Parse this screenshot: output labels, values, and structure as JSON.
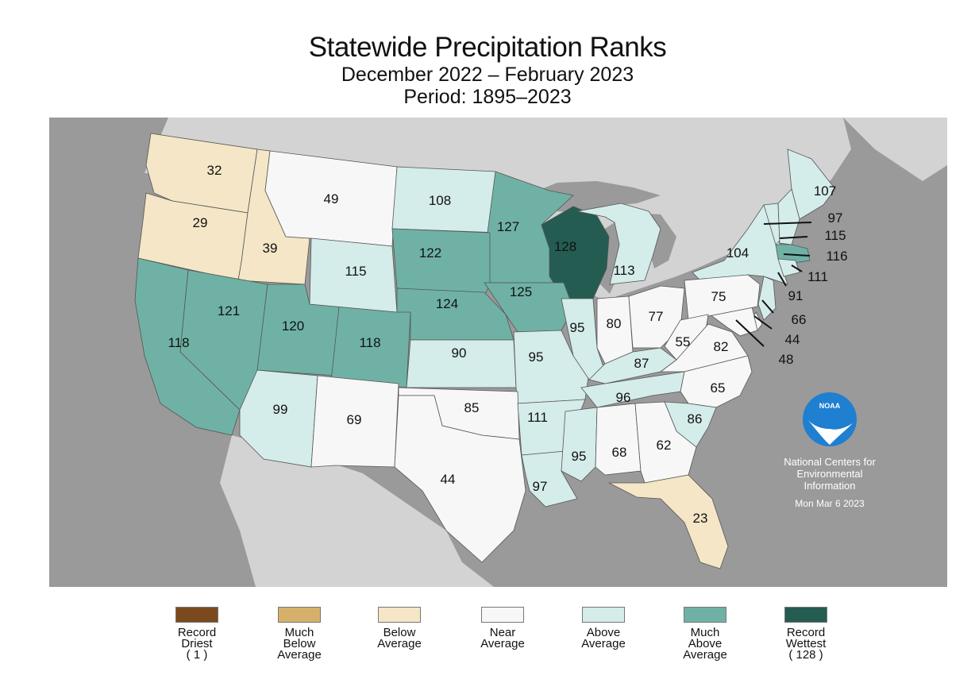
{
  "header": {
    "title": "Statewide Precipitation Ranks",
    "subtitle": "December 2022 – February 2023",
    "period": "Period: 1895–2023"
  },
  "colors": {
    "ocean": "#9a9a9a",
    "land_outside": "#d3d3d3",
    "lakes": "#9a9a9a",
    "state_border": "#555555",
    "record_driest": "#7a4a1e",
    "much_below": "#d6b06a",
    "below": "#f4e6c6",
    "near": "#f7f7f7",
    "above": "#d4ecea",
    "much_above": "#6fb2a5",
    "record_wettest": "#245c52"
  },
  "legend": [
    {
      "label": "Record\nDriest\n( 1 )",
      "color": "#7a4a1e"
    },
    {
      "label": "Much\nBelow\nAverage",
      "color": "#d6b06a"
    },
    {
      "label": "Below\nAverage",
      "color": "#f4e6c6"
    },
    {
      "label": "Near\nAverage",
      "color": "#f7f7f7"
    },
    {
      "label": "Above\nAverage",
      "color": "#d4ecea"
    },
    {
      "label": "Much\nAbove\nAverage",
      "color": "#6fb2a5"
    },
    {
      "label": "Record\nWettest\n( 128 )",
      "color": "#245c52"
    }
  ],
  "states": [
    {
      "code": "WA",
      "rank": "32",
      "cat": "below"
    },
    {
      "code": "OR",
      "rank": "29",
      "cat": "below"
    },
    {
      "code": "ID",
      "rank": "39",
      "cat": "below"
    },
    {
      "code": "MT",
      "rank": "49",
      "cat": "near"
    },
    {
      "code": "ND",
      "rank": "108",
      "cat": "above"
    },
    {
      "code": "MN",
      "rank": "127",
      "cat": "much_above"
    },
    {
      "code": "WI",
      "rank": "128",
      "cat": "record_wettest"
    },
    {
      "code": "MI",
      "rank": "113",
      "cat": "above"
    },
    {
      "code": "ME",
      "rank": "107",
      "cat": "above"
    },
    {
      "code": "NY",
      "rank": "104",
      "cat": "above"
    },
    {
      "code": "VT",
      "rank": "97",
      "cat": "above"
    },
    {
      "code": "NH",
      "rank": "115",
      "cat": "above"
    },
    {
      "code": "MA",
      "rank": "116",
      "cat": "much_above"
    },
    {
      "code": "CT",
      "rank": "111",
      "cat": "above"
    },
    {
      "code": "NJ",
      "rank": "91",
      "cat": "above"
    },
    {
      "code": "DE",
      "rank": "66",
      "cat": "near"
    },
    {
      "code": "MD",
      "rank": "44",
      "cat": "near"
    },
    {
      "code": "DC",
      "rank": "48",
      "cat": "near"
    },
    {
      "code": "CA",
      "rank": "118",
      "cat": "much_above"
    },
    {
      "code": "NV",
      "rank": "121",
      "cat": "much_above"
    },
    {
      "code": "UT",
      "rank": "120",
      "cat": "much_above"
    },
    {
      "code": "CO",
      "rank": "118",
      "cat": "much_above"
    },
    {
      "code": "WY",
      "rank": "115",
      "cat": "above"
    },
    {
      "code": "SD",
      "rank": "122",
      "cat": "much_above"
    },
    {
      "code": "NE",
      "rank": "124",
      "cat": "much_above"
    },
    {
      "code": "IA",
      "rank": "125",
      "cat": "much_above"
    },
    {
      "code": "KS",
      "rank": "90",
      "cat": "above"
    },
    {
      "code": "MO",
      "rank": "95",
      "cat": "above"
    },
    {
      "code": "IL",
      "rank": "95",
      "cat": "above"
    },
    {
      "code": "IN",
      "rank": "80",
      "cat": "near"
    },
    {
      "code": "OH",
      "rank": "77",
      "cat": "near"
    },
    {
      "code": "PA",
      "rank": "75",
      "cat": "near"
    },
    {
      "code": "WV",
      "rank": "55",
      "cat": "near"
    },
    {
      "code": "VA",
      "rank": "82",
      "cat": "near"
    },
    {
      "code": "KY",
      "rank": "87",
      "cat": "above"
    },
    {
      "code": "TN",
      "rank": "96",
      "cat": "above"
    },
    {
      "code": "NC",
      "rank": "65",
      "cat": "near"
    },
    {
      "code": "SC",
      "rank": "86",
      "cat": "above"
    },
    {
      "code": "AZ",
      "rank": "99",
      "cat": "above"
    },
    {
      "code": "NM",
      "rank": "69",
      "cat": "near"
    },
    {
      "code": "OK",
      "rank": "85",
      "cat": "near"
    },
    {
      "code": "TX",
      "rank": "44",
      "cat": "near"
    },
    {
      "code": "AR",
      "rank": "111",
      "cat": "above"
    },
    {
      "code": "LA",
      "rank": "97",
      "cat": "above"
    },
    {
      "code": "MS",
      "rank": "95",
      "cat": "above"
    },
    {
      "code": "AL",
      "rank": "68",
      "cat": "near"
    },
    {
      "code": "GA",
      "rank": "62",
      "cat": "near"
    },
    {
      "code": "FL",
      "rank": "23",
      "cat": "below"
    }
  ],
  "logo": {
    "text": "NOAA",
    "agency": "National Centers for\nEnvironmental\nInformation",
    "date": "Mon Mar  6 2023"
  }
}
